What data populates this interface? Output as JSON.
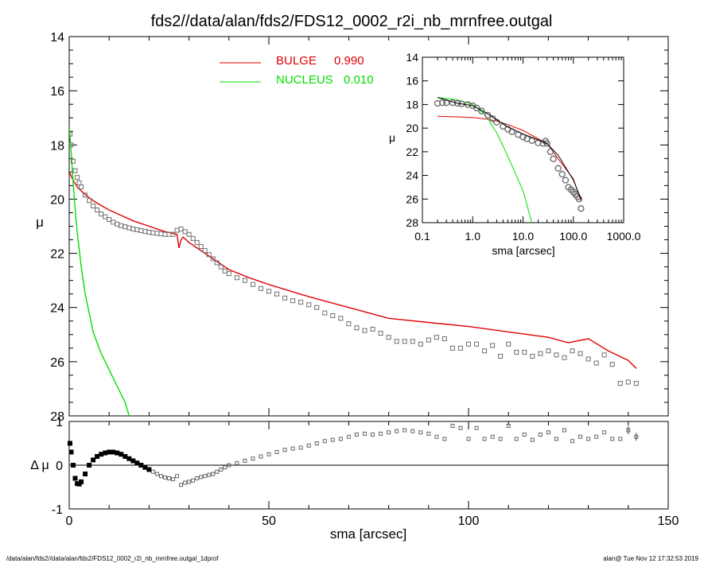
{
  "title": "fds2//data/alan/fds2/FDS12_0002_r2i_nb_mrnfree.outgal",
  "footer_left": "/data/alan/fds2//data/alan/fds2/FDS12_0002_r2i_nb_mrnfree.outgal_1dprof",
  "footer_right": "alan@  Tue Nov 12 17:32:53 2019",
  "colors": {
    "bulge": "#e00000",
    "nucleus": "#00e000",
    "data": "#6e6e6e",
    "axes": "#000000"
  },
  "chart_data": [
    {
      "type": "line",
      "panel": "main profile",
      "xlabel": "",
      "ylabel": "μ",
      "xlim": [
        0,
        150
      ],
      "ylim": [
        28,
        14
      ],
      "y_ticks": [
        14,
        16,
        18,
        20,
        22,
        24,
        26,
        28
      ],
      "legend_placement": "top-center",
      "legend": [
        {
          "label": "BULGE",
          "value": "0.990",
          "color": "#e00000"
        },
        {
          "label": "NUCLEUS",
          "value": "0.010",
          "color": "#00e000"
        }
      ],
      "series": [
        {
          "name": "BULGE",
          "style": "line",
          "color": "#e00000",
          "x": [
            0,
            1,
            2,
            3,
            5,
            7,
            10,
            13,
            16,
            20,
            24,
            27,
            27.5,
            28,
            28.5,
            30,
            35,
            40,
            45,
            50,
            60,
            70,
            80,
            90,
            100,
            110,
            120,
            125,
            130,
            135,
            140,
            142
          ],
          "y": [
            19.0,
            19.3,
            19.55,
            19.7,
            19.95,
            20.15,
            20.4,
            20.6,
            20.8,
            21.0,
            21.2,
            21.3,
            21.8,
            21.5,
            21.4,
            21.6,
            22.1,
            22.6,
            22.9,
            23.15,
            23.6,
            24.0,
            24.4,
            24.55,
            24.7,
            24.9,
            25.1,
            25.3,
            25.15,
            25.6,
            25.95,
            26.25
          ]
        },
        {
          "name": "NUCLEUS",
          "style": "line",
          "color": "#00e000",
          "x": [
            0,
            0.5,
            1,
            1.5,
            2,
            3,
            4,
            5,
            6,
            7,
            8,
            10,
            12,
            14,
            15
          ],
          "y": [
            17.3,
            18.3,
            19.4,
            20.4,
            21.2,
            22.5,
            23.5,
            24.2,
            24.9,
            25.3,
            25.7,
            26.3,
            26.9,
            27.5,
            28.0
          ]
        },
        {
          "name": "",
          "style": "markers",
          "color": "#6e6e6e",
          "x": [
            0.2,
            0.5,
            1,
            1.5,
            2,
            2.5,
            3,
            4,
            5,
            6,
            7,
            8,
            9,
            10,
            11,
            12,
            13,
            14,
            15,
            16,
            17,
            18,
            19,
            20,
            21,
            22,
            23,
            24,
            25,
            26,
            27,
            28,
            29,
            30,
            31,
            32,
            33,
            34,
            35,
            36,
            37,
            38,
            39,
            40,
            42,
            44,
            46,
            48,
            50,
            52,
            54,
            56,
            58,
            60,
            62,
            64,
            66,
            68,
            70,
            72,
            74,
            76,
            78,
            80,
            82,
            84,
            86,
            88,
            90,
            92,
            94,
            96,
            98,
            100,
            102,
            104,
            106,
            108,
            110,
            112,
            114,
            116,
            118,
            120,
            122,
            124,
            126,
            128,
            130,
            132,
            134,
            136,
            138,
            140,
            142
          ],
          "y": [
            17.6,
            18.0,
            18.6,
            18.95,
            19.2,
            19.4,
            19.55,
            19.85,
            20.05,
            20.25,
            20.4,
            20.55,
            20.65,
            20.75,
            20.85,
            20.92,
            20.98,
            21.02,
            21.06,
            21.1,
            21.13,
            21.16,
            21.19,
            21.22,
            21.24,
            21.26,
            21.28,
            21.3,
            21.3,
            21.3,
            21.15,
            21.1,
            21.2,
            21.3,
            21.45,
            21.6,
            21.75,
            21.9,
            22.05,
            22.2,
            22.35,
            22.5,
            22.65,
            22.75,
            22.9,
            23.0,
            23.15,
            23.3,
            23.4,
            23.5,
            23.65,
            23.75,
            23.8,
            23.9,
            24.0,
            24.2,
            24.3,
            24.4,
            24.6,
            24.75,
            24.85,
            24.8,
            24.95,
            25.1,
            25.25,
            25.25,
            25.25,
            25.35,
            25.2,
            25.1,
            25.15,
            25.5,
            25.5,
            25.35,
            25.35,
            25.6,
            25.4,
            25.8,
            25.35,
            25.65,
            25.65,
            25.8,
            25.7,
            25.6,
            25.75,
            25.85,
            25.6,
            25.7,
            25.9,
            26.05,
            25.75,
            26.1,
            26.8,
            26.75,
            26.8
          ]
        }
      ]
    },
    {
      "type": "scatter",
      "panel": "residuals",
      "xlabel": "sma [arcsec]",
      "ylabel": "Δ μ",
      "xlim": [
        0,
        150
      ],
      "ylim": [
        -1,
        1
      ],
      "x_ticks": [
        0,
        50,
        100,
        150
      ],
      "y_ticks": [
        -1,
        0,
        1
      ],
      "zero_line": true,
      "series": [
        {
          "name": "",
          "color": "#000000",
          "x": [
            0.2,
            0.5,
            1,
            1.5,
            2,
            2.5,
            3,
            4,
            5,
            6,
            7,
            8,
            9,
            10,
            11,
            12,
            13,
            14,
            15,
            16,
            17,
            18,
            19,
            20,
            21,
            22,
            23,
            24,
            25,
            26,
            27,
            28,
            29,
            30,
            31,
            32,
            33,
            34,
            35,
            36,
            37,
            38,
            39,
            40,
            42,
            44,
            46,
            48,
            50,
            52,
            54,
            56,
            58,
            60,
            62,
            64,
            66,
            68,
            70,
            72,
            74,
            76,
            78,
            80,
            82,
            84,
            86,
            88,
            90,
            92,
            94,
            96,
            98,
            100,
            102,
            104,
            106,
            108,
            110,
            112,
            114,
            116,
            118,
            120,
            122,
            124,
            126,
            128,
            130,
            132,
            134,
            136,
            138,
            140,
            142
          ],
          "y": [
            0.5,
            0.3,
            0.0,
            -0.3,
            -0.42,
            -0.43,
            -0.38,
            -0.2,
            0.0,
            0.12,
            0.2,
            0.25,
            0.28,
            0.3,
            0.3,
            0.28,
            0.25,
            0.2,
            0.15,
            0.1,
            0.05,
            0.0,
            -0.05,
            -0.1,
            -0.15,
            -0.2,
            -0.25,
            -0.28,
            -0.3,
            -0.32,
            -0.25,
            -0.45,
            -0.4,
            -0.38,
            -0.35,
            -0.3,
            -0.27,
            -0.25,
            -0.22,
            -0.2,
            -0.15,
            -0.1,
            -0.05,
            0.0,
            0.05,
            0.1,
            0.15,
            0.2,
            0.25,
            0.3,
            0.35,
            0.38,
            0.4,
            0.45,
            0.5,
            0.55,
            0.58,
            0.6,
            0.65,
            0.7,
            0.72,
            0.7,
            0.72,
            0.75,
            0.78,
            0.8,
            0.78,
            0.75,
            0.72,
            0.65,
            0.6,
            0.9,
            0.85,
            0.6,
            0.85,
            0.6,
            0.65,
            0.6,
            0.9,
            0.6,
            0.7,
            0.58,
            0.7,
            0.75,
            0.6,
            0.8,
            0.55,
            0.65,
            0.6,
            0.65,
            0.75,
            0.6,
            0.6,
            0.8,
            0.65
          ]
        }
      ]
    },
    {
      "type": "line",
      "panel": "inset log profile",
      "xlabel": "sma [arcsec]",
      "ylabel": "μ",
      "xscale": "log",
      "xlim": [
        0.1,
        1000
      ],
      "ylim": [
        28,
        14
      ],
      "x_ticks": [
        "0.1",
        "1.0",
        "10.0",
        "100.0",
        "1000.0"
      ],
      "y_ticks": [
        14,
        16,
        18,
        20,
        22,
        24,
        26,
        28
      ],
      "series": [
        {
          "name": "BULGE",
          "style": "line",
          "color": "#e00000",
          "x": [
            0.2,
            0.5,
            1,
            2,
            3,
            5,
            10,
            20,
            30,
            50,
            100,
            142
          ],
          "y": [
            19.0,
            19.05,
            19.1,
            19.25,
            19.4,
            19.7,
            20.2,
            20.9,
            21.3,
            22.6,
            24.3,
            26.2
          ]
        },
        {
          "name": "NUCLEUS",
          "style": "line",
          "color": "#00e000",
          "x": [
            0.2,
            0.5,
            1,
            1.5,
            2,
            3,
            4,
            5,
            7,
            10,
            15
          ],
          "y": [
            17.4,
            17.6,
            18.0,
            18.6,
            19.2,
            20.4,
            21.5,
            22.4,
            23.8,
            25.3,
            28.0
          ]
        },
        {
          "name": "",
          "style": "markers",
          "color": "#6e6e6e",
          "x": [
            0.2,
            0.25,
            0.3,
            0.4,
            0.5,
            0.6,
            0.8,
            1,
            1.2,
            1.5,
            2,
            2.5,
            3,
            4,
            5,
            6,
            8,
            10,
            12,
            15,
            20,
            25,
            28,
            30,
            35,
            40,
            50,
            60,
            70,
            80,
            90,
            100,
            110,
            120,
            130,
            142
          ],
          "y": [
            17.9,
            17.85,
            17.85,
            17.85,
            17.9,
            17.95,
            18.0,
            18.1,
            18.3,
            18.55,
            18.9,
            19.2,
            19.5,
            19.85,
            20.1,
            20.3,
            20.55,
            20.75,
            20.9,
            21.05,
            21.25,
            21.3,
            21.1,
            21.3,
            22.0,
            22.6,
            23.4,
            23.9,
            24.4,
            25.0,
            25.2,
            25.4,
            25.6,
            25.8,
            26.0,
            26.8
          ]
        },
        {
          "name": "",
          "style": "line",
          "color": "#000000",
          "x": [
            0.2,
            0.5,
            1,
            2,
            3,
            5,
            10,
            20,
            30,
            50,
            100,
            142
          ],
          "y": [
            17.4,
            17.9,
            18.1,
            18.8,
            19.3,
            19.9,
            20.5,
            21.0,
            21.3,
            22.3,
            24.4,
            26.0
          ]
        }
      ]
    }
  ]
}
